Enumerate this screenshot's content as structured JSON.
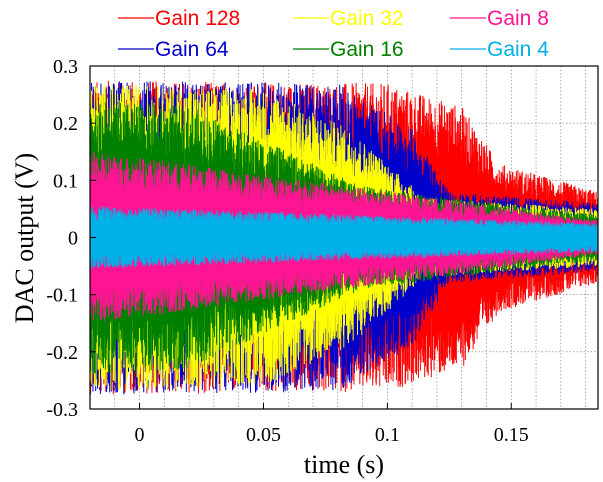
{
  "chart_data": {
    "type": "line",
    "xlabel": "time (s)",
    "ylabel": "DAC output (V)",
    "xlim": [
      -0.02,
      0.185
    ],
    "ylim": [
      -0.3,
      0.3
    ],
    "xticks": [
      0,
      0.05,
      0.1,
      0.15
    ],
    "xtick_labels": [
      "0",
      "0.05",
      "0.1",
      "0.15"
    ],
    "yticks": [
      -0.3,
      -0.2,
      -0.1,
      0,
      0.1,
      0.2,
      0.3
    ],
    "ytick_labels": [
      "-0.3",
      "-0.2",
      "-0.1",
      "0",
      "0.1",
      "0.2",
      "0.3"
    ],
    "grid": true,
    "legend_position": "top",
    "series": [
      {
        "name": "Gain 128",
        "color": "#ff0000",
        "envelope": {
          "x": [
            -0.02,
            0.1,
            0.13,
            0.145,
            0.185
          ],
          "amplitude": [
            0.275,
            0.27,
            0.23,
            0.13,
            0.08
          ]
        }
      },
      {
        "name": "Gain 64",
        "color": "#0000cc",
        "envelope": {
          "x": [
            -0.02,
            0.08,
            0.11,
            0.125,
            0.185
          ],
          "amplitude": [
            0.275,
            0.27,
            0.19,
            0.08,
            0.06
          ]
        }
      },
      {
        "name": "Gain 32",
        "color": "#ffff00",
        "envelope": {
          "x": [
            -0.02,
            0.05,
            0.085,
            0.115,
            0.185
          ],
          "amplitude": [
            0.27,
            0.26,
            0.19,
            0.07,
            0.05
          ]
        }
      },
      {
        "name": "Gain 16",
        "color": "#008000",
        "envelope": {
          "x": [
            -0.02,
            0.02,
            0.09,
            0.185
          ],
          "amplitude": [
            0.24,
            0.23,
            0.09,
            0.04
          ]
        }
      },
      {
        "name": "Gain 8",
        "color": "#ff1493",
        "envelope": {
          "x": [
            -0.02,
            0.0,
            0.185
          ],
          "amplitude": [
            0.15,
            0.14,
            0.03
          ]
        }
      },
      {
        "name": "Gain 4",
        "color": "#00b0e8",
        "envelope": {
          "x": [
            -0.02,
            0.185
          ],
          "amplitude": [
            0.055,
            0.025
          ]
        }
      }
    ]
  }
}
